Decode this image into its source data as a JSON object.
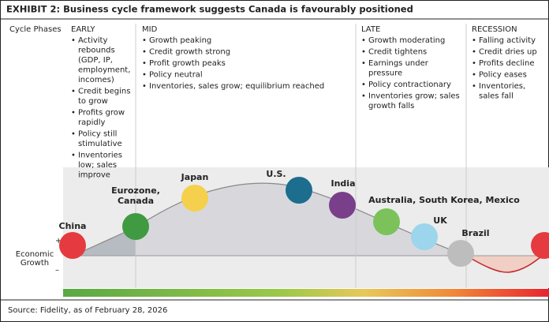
{
  "title": "EXHIBIT 2: Business cycle framework suggests Canada is favourably positioned",
  "row_label": "Cycle Phases",
  "phases": [
    {
      "name": "EARLY",
      "items": [
        "Activity rebounds (GDP, IP, employment, incomes)",
        "Credit begins to grow",
        "Profits grow rapidly",
        "Policy still stimulative",
        "Inventories low; sales improve"
      ]
    },
    {
      "name": "MID",
      "items": [
        "Growth peaking",
        "Credit growth strong",
        "Profit growth peaks",
        "Policy neutral",
        "Inventories, sales grow; equilibrium reached"
      ]
    },
    {
      "name": "LATE",
      "items": [
        "Growth moderating",
        "Credit tightens",
        "Earnings under pressure",
        "Policy contractionary",
        "Inventories grow; sales growth falls"
      ]
    },
    {
      "name": "RECESSION",
      "items": [
        "Falling activity",
        "Credit dries up",
        "Profits decline",
        "Policy eases",
        "Inventories, sales fall"
      ]
    }
  ],
  "countries": [
    {
      "label": [
        "China"
      ]
    },
    {
      "label": [
        "Eurozone,",
        "Canada"
      ]
    },
    {
      "label": [
        "Japan"
      ]
    },
    {
      "label": [
        "U.S."
      ]
    },
    {
      "label": [
        "India"
      ]
    },
    {
      "label": [
        "Australia, South Korea, Mexico"
      ]
    },
    {
      "label": [
        "UK"
      ]
    },
    {
      "label": [
        "Brazil"
      ]
    }
  ],
  "axis": {
    "plus": "+",
    "label": [
      "Economic",
      "Growth"
    ],
    "minus": "–"
  },
  "source": "Source: Fidelity, as of February 28, 2026"
}
